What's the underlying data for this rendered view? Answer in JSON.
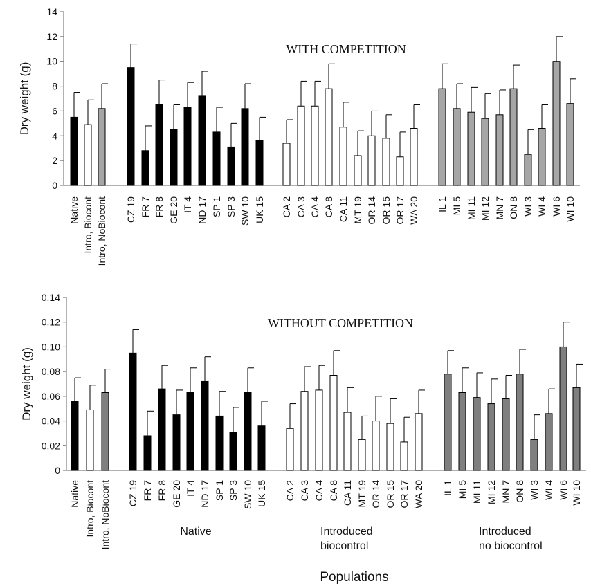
{
  "chart_data": [
    {
      "type": "bar",
      "title": "WITH COMPETITION",
      "ylabel": "Dry weight (g)",
      "ylim": [
        0,
        14
      ],
      "yticks": [
        "0",
        "2",
        "4",
        "6",
        "8",
        "10",
        "12",
        "14"
      ],
      "error_bars": true,
      "groups": [
        {
          "style": "black",
          "categories": [
            "Native"
          ],
          "values": [
            5.5
          ],
          "errors": [
            2.0
          ]
        },
        {
          "style": "white",
          "categories": [
            "Intro, Biocont"
          ],
          "values": [
            4.9
          ],
          "errors": [
            2.0
          ]
        },
        {
          "style": "gray",
          "categories": [
            "Intro, NoBiocont"
          ],
          "values": [
            6.2
          ],
          "errors": [
            2.0
          ]
        },
        {
          "style": "black",
          "categories": [
            "CZ 19",
            "FR 7",
            "FR 8",
            "GE 20",
            "IT 4",
            "ND 17",
            "SP 1",
            "SP 3",
            "SW 10",
            "UK 15"
          ],
          "values": [
            9.5,
            2.8,
            6.5,
            4.5,
            6.3,
            7.2,
            4.3,
            3.1,
            6.2,
            3.6
          ],
          "errors": [
            1.9,
            2.0,
            2.0,
            2.0,
            2.0,
            2.0,
            2.0,
            1.9,
            2.0,
            1.9
          ]
        },
        {
          "style": "white",
          "categories": [
            "CA 2",
            "CA 3",
            "CA 4",
            "CA 8",
            "CA 11",
            "MT 19",
            "OR 14",
            "OR 15",
            "OR 17",
            "WA 20"
          ],
          "values": [
            3.4,
            6.4,
            6.4,
            7.8,
            4.7,
            2.4,
            4.0,
            3.8,
            2.3,
            4.6
          ],
          "errors": [
            1.9,
            2.0,
            2.0,
            2.0,
            2.0,
            2.0,
            2.0,
            1.9,
            2.0,
            1.9
          ]
        },
        {
          "style": "gray",
          "categories": [
            "IL 1",
            "MI 5",
            "MI 11",
            "MI 12",
            "MN 7",
            "ON 8",
            "WI 3",
            "WI 4",
            "WI 6",
            "WI 10"
          ],
          "values": [
            7.8,
            6.2,
            5.9,
            5.4,
            5.7,
            7.8,
            2.5,
            4.6,
            10.0,
            6.6
          ],
          "errors": [
            2.0,
            2.0,
            2.0,
            2.0,
            2.0,
            1.9,
            2.0,
            1.9,
            2.0,
            2.0
          ]
        }
      ]
    },
    {
      "type": "bar",
      "title": "WITHOUT COMPETITION",
      "ylabel": "Dry weight (g)",
      "ylim": [
        0,
        0.14
      ],
      "yticks": [
        "0",
        "0.02",
        "0.04",
        "0.06",
        "0.08",
        "0.10",
        "0.12",
        "0.14"
      ],
      "error_bars": true,
      "xlabel": "Populations",
      "group_labels": [
        [
          "Native"
        ],
        [
          "Introduced",
          "biocontrol"
        ],
        [
          "Introduced",
          "no biocontrol"
        ]
      ],
      "groups": [
        {
          "style": "black",
          "categories": [
            "Native"
          ],
          "values": [
            0.056
          ],
          "errors": [
            0.019
          ]
        },
        {
          "style": "white",
          "categories": [
            "Intro, Biocont"
          ],
          "values": [
            0.049
          ],
          "errors": [
            0.02
          ]
        },
        {
          "style": "gray",
          "categories": [
            "Intro, NoBiocont"
          ],
          "values": [
            0.063
          ],
          "errors": [
            0.019
          ]
        },
        {
          "style": "black",
          "categories": [
            "CZ 19",
            "FR 7",
            "FR 8",
            "GE 20",
            "IT 4",
            "ND 17",
            "SP 1",
            "SP 3",
            "SW 10",
            "UK 15"
          ],
          "values": [
            0.095,
            0.028,
            0.066,
            0.045,
            0.063,
            0.072,
            0.044,
            0.031,
            0.063,
            0.036
          ],
          "errors": [
            0.019,
            0.02,
            0.019,
            0.02,
            0.02,
            0.02,
            0.02,
            0.02,
            0.02,
            0.02
          ]
        },
        {
          "style": "white",
          "categories": [
            "CA 2",
            "CA 3",
            "CA 4",
            "CA 8",
            "CA 11",
            "MT 19",
            "OR 14",
            "OR 15",
            "OR 17",
            "WA 20"
          ],
          "values": [
            0.034,
            0.064,
            0.065,
            0.077,
            0.047,
            0.025,
            0.04,
            0.038,
            0.023,
            0.046
          ],
          "errors": [
            0.02,
            0.02,
            0.02,
            0.02,
            0.02,
            0.019,
            0.02,
            0.02,
            0.02,
            0.019
          ]
        },
        {
          "style": "gray",
          "categories": [
            "IL 1",
            "MI 5",
            "MI 11",
            "MI 12",
            "MN 7",
            "ON 8",
            "WI 3",
            "WI 4",
            "WI 6",
            "WI 10"
          ],
          "values": [
            0.078,
            0.063,
            0.059,
            0.054,
            0.058,
            0.078,
            0.025,
            0.046,
            0.1,
            0.067
          ],
          "errors": [
            0.019,
            0.02,
            0.02,
            0.02,
            0.019,
            0.02,
            0.02,
            0.02,
            0.02,
            0.019
          ]
        }
      ]
    }
  ],
  "colors": {
    "black": "#000000",
    "white": "#ffffff",
    "gray": "#a6a6a6",
    "gray_dark": "#7f7f7f",
    "axis": "#808080"
  }
}
